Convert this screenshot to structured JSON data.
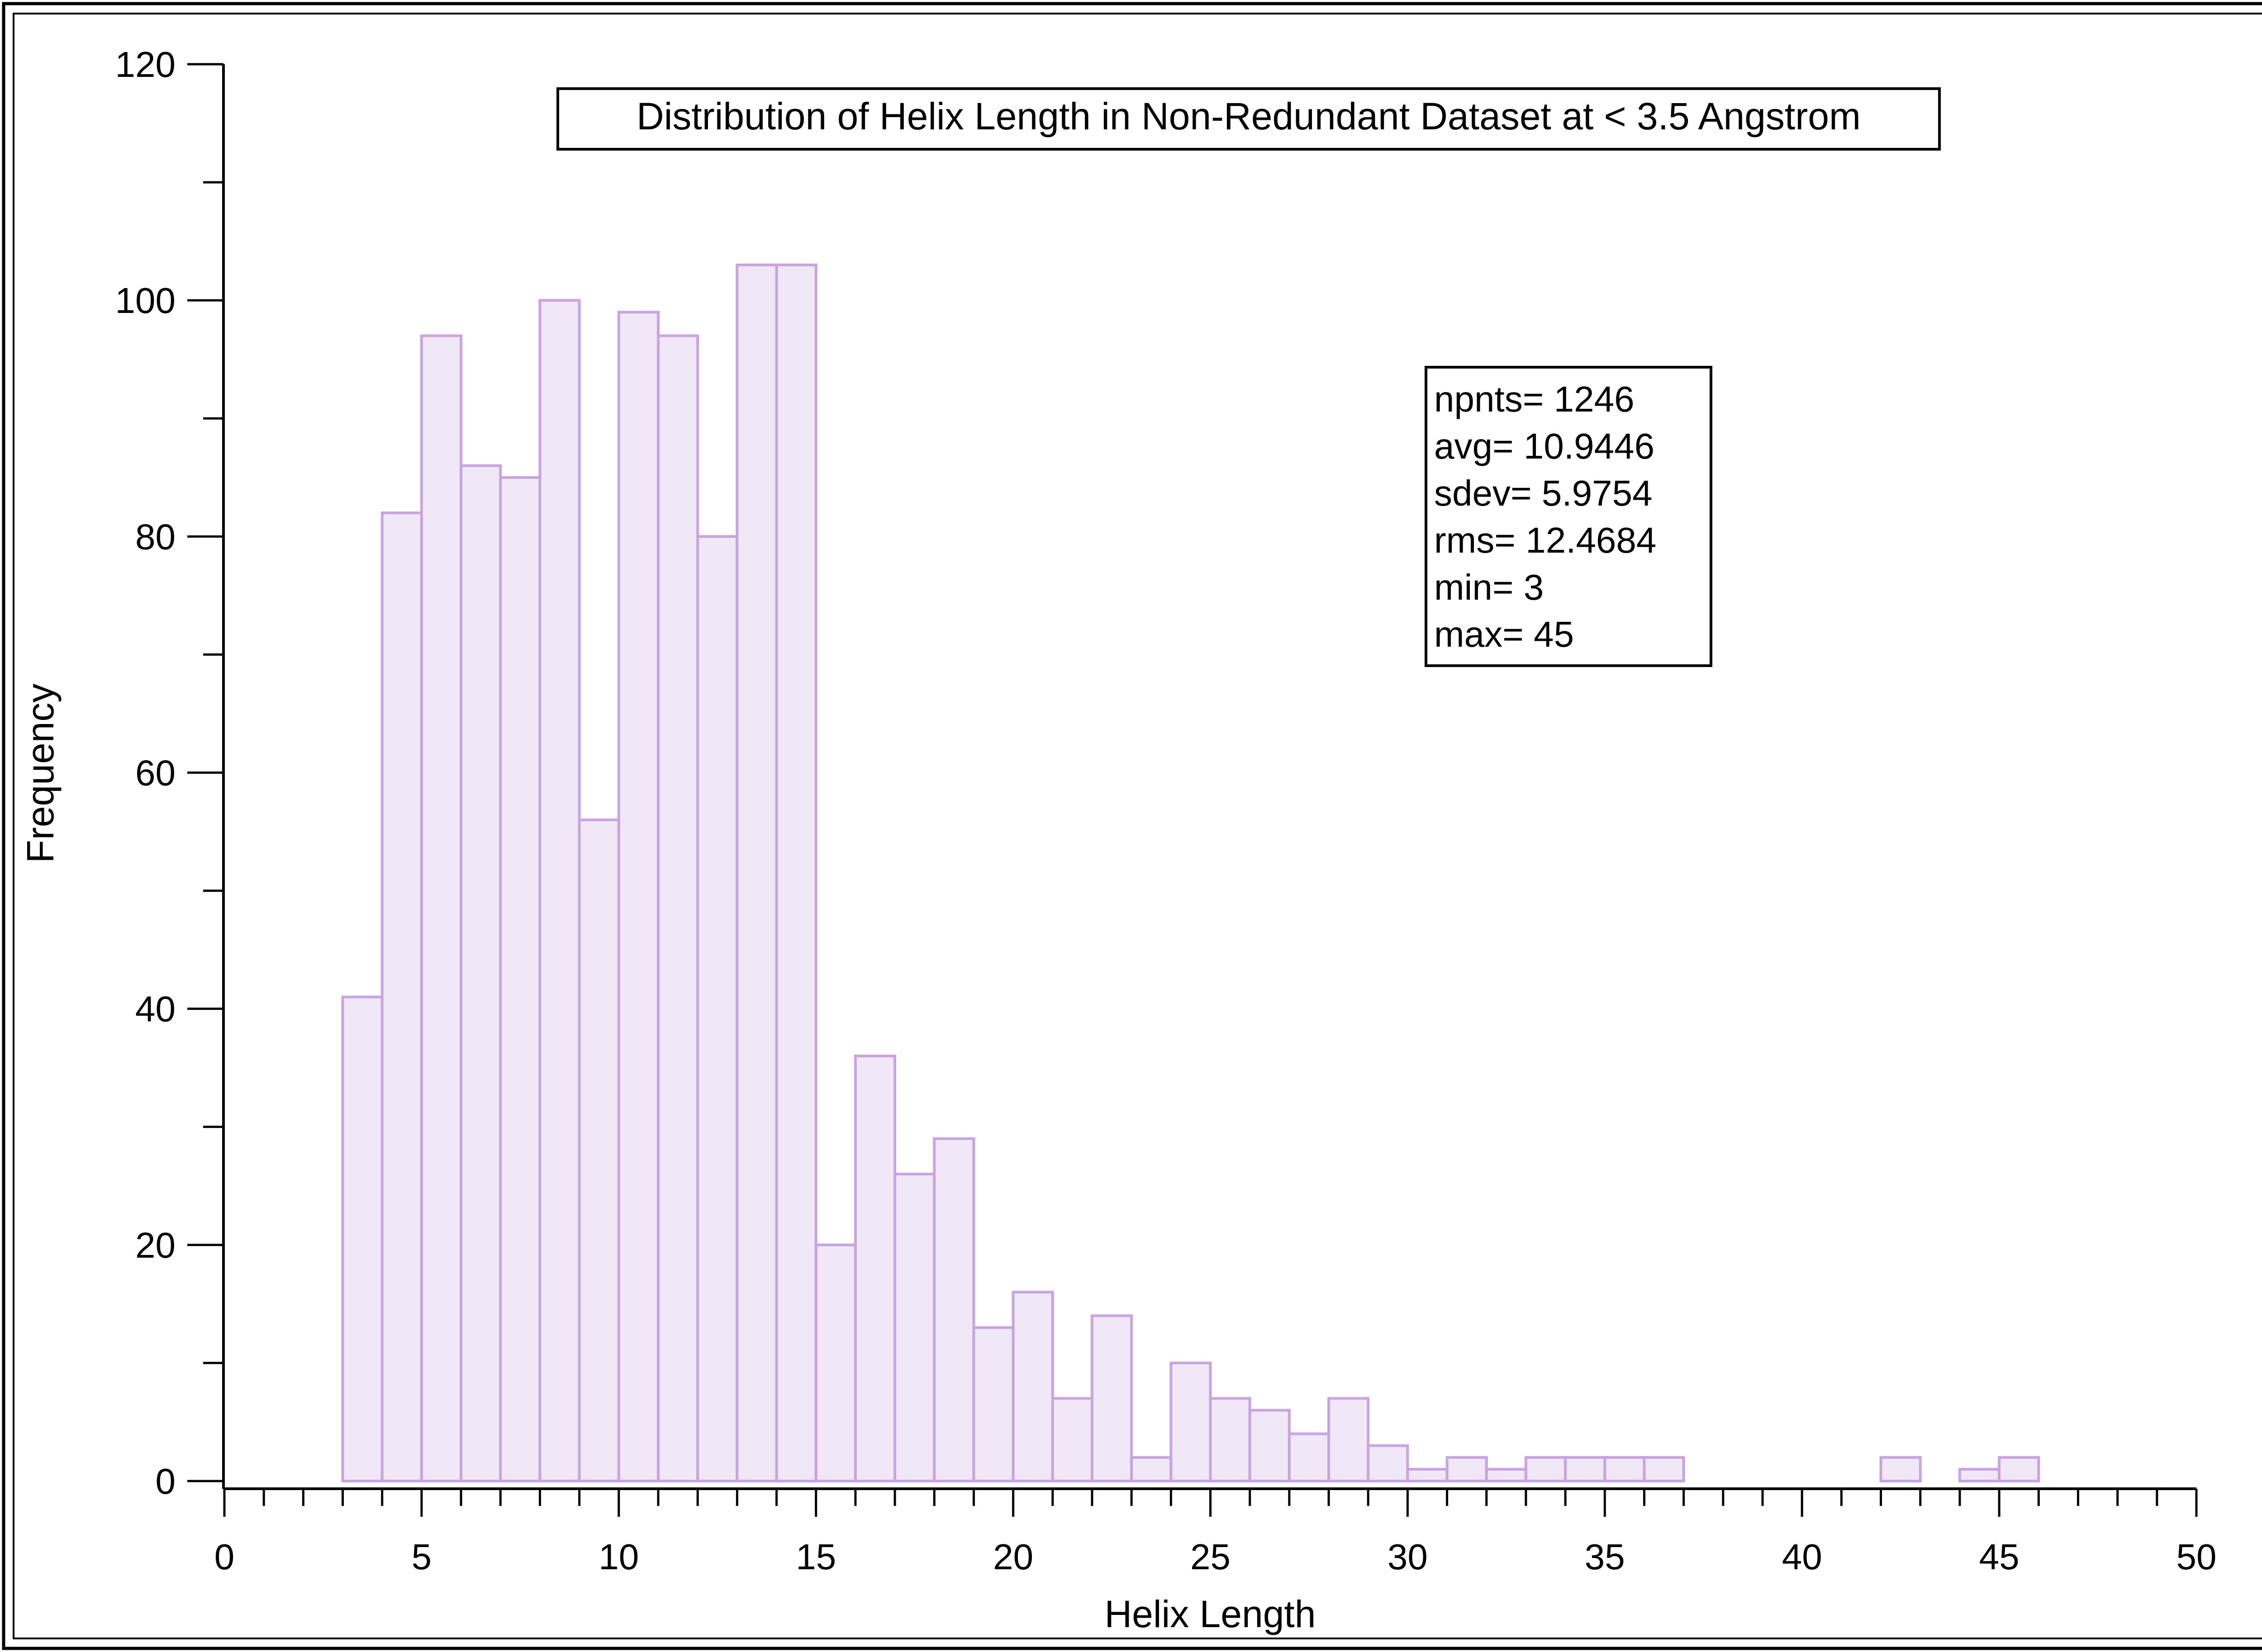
{
  "chart_data": {
    "type": "bar",
    "title": "Distribution of Helix Length in Non-Redundant Dataset at < 3.5 Angstrom",
    "xlabel": "Helix Length",
    "ylabel": "Frequency",
    "xlim": [
      0,
      50
    ],
    "ylim": [
      0,
      120
    ],
    "x_ticks": [
      0,
      5,
      10,
      15,
      20,
      25,
      30,
      35,
      40,
      45,
      50
    ],
    "y_ticks": [
      0,
      20,
      40,
      60,
      80,
      100,
      120
    ],
    "bin_width": 1,
    "bins_start": 0,
    "values": [
      0,
      0,
      0,
      41,
      82,
      97,
      86,
      85,
      100,
      56,
      99,
      97,
      80,
      103,
      103,
      20,
      36,
      26,
      29,
      13,
      16,
      7,
      14,
      2,
      10,
      7,
      6,
      4,
      7,
      3,
      1,
      2,
      1,
      2,
      2,
      2,
      2,
      0,
      0,
      0,
      0,
      0,
      2,
      0,
      1,
      2,
      0,
      0,
      0,
      0
    ],
    "bar_fill": "#f0e8f6",
    "bar_stroke": "#c9a4e0",
    "grid": false,
    "stats": [
      {
        "label": "npnts=",
        "value": "1246"
      },
      {
        "label": "avg=",
        "value": "10.9446"
      },
      {
        "label": "sdev=",
        "value": "5.9754"
      },
      {
        "label": "rms=",
        "value": "12.4684"
      },
      {
        "label": "min=",
        "value": "3"
      },
      {
        "label": "max=",
        "value": "45"
      }
    ]
  }
}
